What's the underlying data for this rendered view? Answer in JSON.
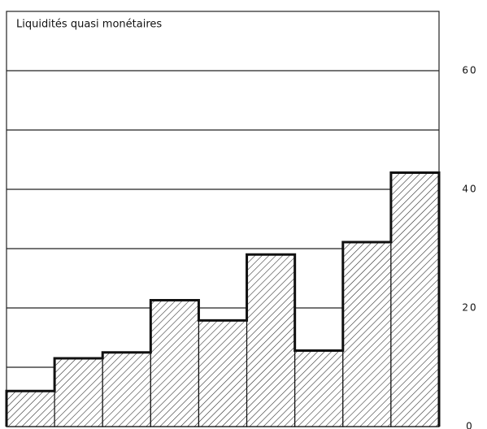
{
  "chart_data": {
    "type": "bar",
    "title": "Liquidités quasi monétaires",
    "categories": [
      null,
      null,
      null,
      null,
      null,
      null,
      null,
      null,
      null
    ],
    "values": [
      6,
      11.5,
      12.5,
      21.3,
      17.9,
      29,
      12.8,
      31.1,
      42.8
    ],
    "color": "#111111",
    "ylim": [
      0,
      70
    ],
    "yticks": [
      0,
      20,
      40,
      60
    ],
    "minor_yticks": [
      10,
      30,
      50
    ],
    "grid": true
  }
}
